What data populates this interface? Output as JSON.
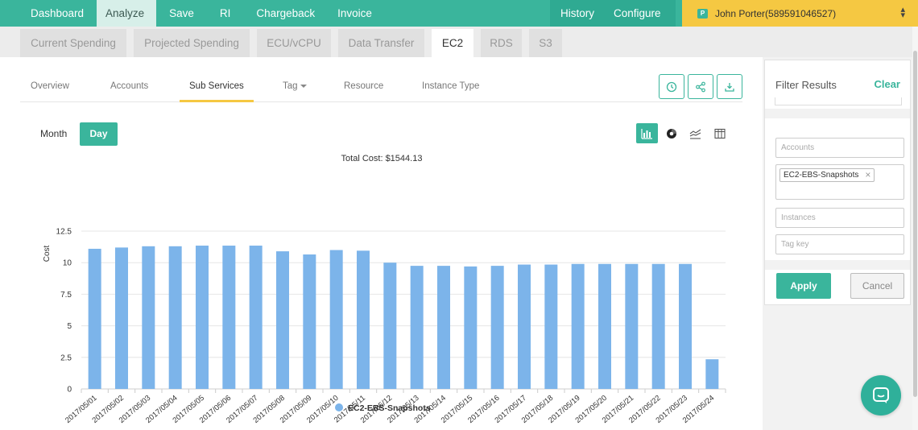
{
  "colors": {
    "accent": "#3ab59c",
    "bar": "#7cb4ea",
    "user_bar": "#f5c842"
  },
  "topnav": {
    "items": [
      "Dashboard",
      "Analyze",
      "Save",
      "RI",
      "Chargeback",
      "Invoice"
    ],
    "active": "Analyze",
    "right_items": [
      "History",
      "Configure"
    ],
    "user": {
      "badge": "P",
      "label": "John Porter(589591046527)"
    }
  },
  "subtabs": {
    "items": [
      "Current Spending",
      "Projected Spending",
      "ECU/vCPU",
      "Data Transfer",
      "EC2",
      "RDS",
      "S3"
    ],
    "active": "EC2"
  },
  "service_tabs": {
    "items": [
      "Overview",
      "Accounts",
      "Sub Services",
      "Tag",
      "Resource",
      "Instance Type"
    ],
    "active": "Sub Services",
    "actions": [
      "history-icon",
      "share-icon",
      "download-icon"
    ]
  },
  "period": {
    "month_label": "Month",
    "day_label": "Day",
    "active": "Day"
  },
  "chart_types": {
    "items": [
      "bar-chart-icon",
      "pie-chart-icon",
      "line-chart-icon",
      "table-icon"
    ],
    "active": "bar-chart-icon"
  },
  "chart_data": {
    "type": "bar",
    "title": "Total Cost: $1544.13",
    "ylabel": "Cost",
    "xlabel": "",
    "ylim": [
      0,
      12.5
    ],
    "yticks": [
      "0",
      "2.5",
      "5",
      "7.5",
      "10",
      "12.5"
    ],
    "grid": true,
    "legend_position": "bottom",
    "categories": [
      "2017/05/01",
      "2017/05/02",
      "2017/05/03",
      "2017/05/04",
      "2017/05/05",
      "2017/05/06",
      "2017/05/07",
      "2017/05/08",
      "2017/05/09",
      "2017/05/10",
      "2017/05/11",
      "2017/05/12",
      "2017/05/13",
      "2017/05/14",
      "2017/05/15",
      "2017/05/16",
      "2017/05/17",
      "2017/05/18",
      "2017/05/19",
      "2017/05/20",
      "2017/05/21",
      "2017/05/22",
      "2017/05/23",
      "2017/05/24"
    ],
    "series": [
      {
        "name": "EC2-EBS-Snapshots",
        "values": [
          11.1,
          11.2,
          11.3,
          11.3,
          11.35,
          11.35,
          11.35,
          10.9,
          10.65,
          11.0,
          10.95,
          10.0,
          9.75,
          9.75,
          9.7,
          9.75,
          9.85,
          9.85,
          9.9,
          9.9,
          9.9,
          9.9,
          9.9,
          2.35
        ]
      }
    ]
  },
  "filter": {
    "title": "Filter Results",
    "clear_label": "Clear",
    "accounts_placeholder": "Accounts",
    "selected_chip": "EC2-EBS-Snapshots",
    "chip_remove": "×",
    "instances_placeholder": "Instances",
    "tagkey_placeholder": "Tag key",
    "apply_label": "Apply",
    "cancel_label": "Cancel"
  }
}
